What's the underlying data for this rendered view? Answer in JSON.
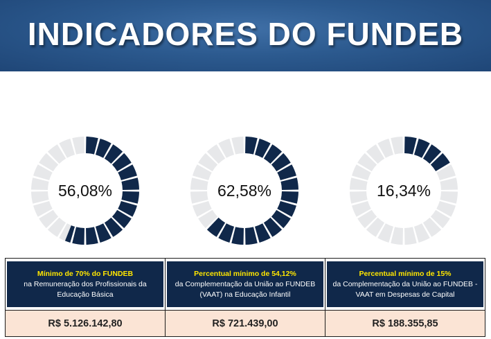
{
  "header": {
    "title": "INDICADORES DO FUNDEB"
  },
  "colors": {
    "filled": "#10284a",
    "empty": "#e7e8ea",
    "title_accent": "#ffe600",
    "value_bg": "#fbe4d5"
  },
  "indicators": [
    {
      "percentage_label": "56,08%",
      "percentage_value": 56.08,
      "title": "Mínimo de 70% do FUNDEB",
      "description": "na Remuneração dos Profissionais da Educação Básica",
      "amount": "R$ 5.126.142,80"
    },
    {
      "percentage_label": "62,58%",
      "percentage_value": 62.58,
      "title": "Percentual mínimo de 54,12%",
      "description": "da Complementação da União ao FUNDEB (VAAT) na Educação Infantil",
      "amount": "R$ 721.439,00"
    },
    {
      "percentage_label": "16,34%",
      "percentage_value": 16.34,
      "title": "Percentual mínimo de 15%",
      "description": "da Complementação da União ao FUNDEB - VAAT em Despesas de Capital",
      "amount": "R$ 188.355,85"
    }
  ]
}
